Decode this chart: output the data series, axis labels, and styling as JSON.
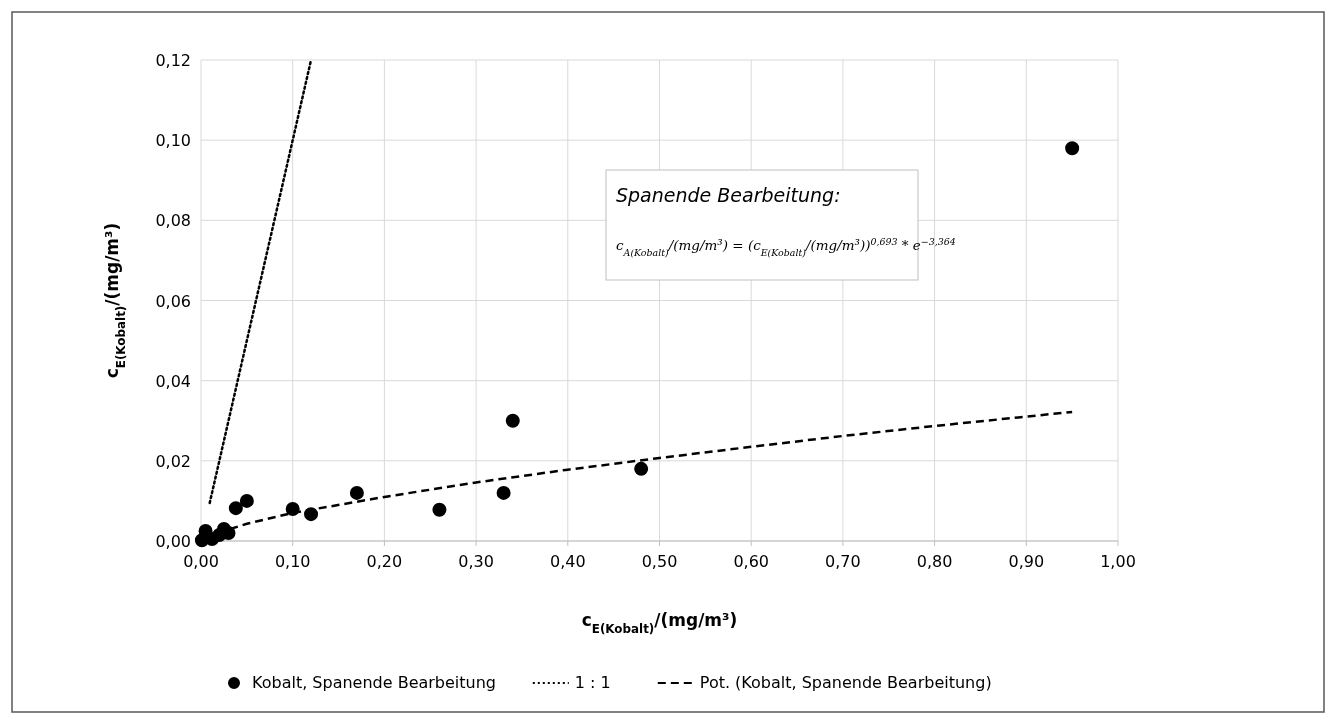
{
  "chart_data": {
    "type": "scatter",
    "xlabel": "c$_{E(Kobalt)}$/(mg/m³)",
    "ylabel": "c$_{E(Kobalt)}$/(mg/m³)",
    "xlim": [
      0,
      1
    ],
    "ylim": [
      0,
      0.12
    ],
    "xticks": [
      {
        "value": 0,
        "label": "0,00"
      },
      {
        "value": 0.1,
        "label": "0,10"
      },
      {
        "value": 0.2,
        "label": "0,20"
      },
      {
        "value": 0.3,
        "label": "0,30"
      },
      {
        "value": 0.4,
        "label": "0,40"
      },
      {
        "value": 0.5,
        "label": "0,50"
      },
      {
        "value": 0.6,
        "label": "0,60"
      },
      {
        "value": 0.7,
        "label": "0,70"
      },
      {
        "value": 0.8,
        "label": "0,80"
      },
      {
        "value": 0.9,
        "label": "0,90"
      },
      {
        "value": 1,
        "label": "1,00"
      }
    ],
    "yticks": [
      {
        "value": 0,
        "label": "0,00"
      },
      {
        "value": 0.02,
        "label": "0,02"
      },
      {
        "value": 0.04,
        "label": "0,04"
      },
      {
        "value": 0.06,
        "label": "0,06"
      },
      {
        "value": 0.08,
        "label": "0,08"
      },
      {
        "value": 0.1,
        "label": "0,10"
      },
      {
        "value": 0.12,
        "label": "0,12"
      }
    ],
    "grid": true,
    "legend": "bottom",
    "series": [
      {
        "name": "Kobalt, Spanende Bearbeitung",
        "color": "#000000",
        "marker": "circle",
        "x": [
          0.95,
          0.48,
          0.34,
          0.33,
          0.26,
          0.17,
          0.12,
          0.1,
          0.05,
          0.038,
          0.025,
          0.03,
          0.02,
          0.005,
          0.001,
          0.012
        ],
        "values": [
          0.098,
          0.018,
          0.03,
          0.012,
          0.0078,
          0.012,
          0.0067,
          0.008,
          0.01,
          0.0082,
          0.003,
          0.002,
          0.0015,
          0.0025,
          0.0002,
          0.0005
        ]
      },
      {
        "name": "1 : 1",
        "type": "line",
        "color": "#000000",
        "line_style": "dotted",
        "x": [
          0.0095,
          0.12
        ],
        "values": [
          0.0095,
          0.12
        ]
      },
      {
        "name": "Pot. (Kobalt, Spanende Bearbeitung)",
        "type": "line",
        "color": "#000000",
        "line_style": "dashed",
        "x": [
          0.005,
          0.01,
          0.05,
          0.1,
          0.2,
          0.3,
          0.4,
          0.5,
          0.6,
          0.7,
          0.8,
          0.95
        ],
        "values": [
          0.0009,
          0.0014,
          0.0043,
          0.007,
          0.011,
          0.0146,
          0.0178,
          0.0207,
          0.0235,
          0.0262,
          0.0287,
          0.0322
        ]
      }
    ],
    "annotations": [
      "Spanende Bearbeitung:",
      "c$_{A(Kobalt)}$/(mg/m³) = (c$_{E(Kobalt)}$/(mg/m³))$^{0,693}$ * e$^{−3,364}$"
    ]
  }
}
